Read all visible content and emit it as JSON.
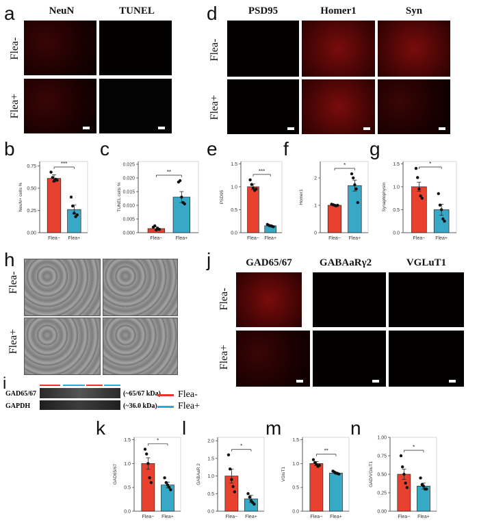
{
  "panel_labels": {
    "a": "a",
    "b": "b",
    "c": "c",
    "d": "d",
    "e": "e",
    "f": "f",
    "g": "g",
    "h": "h",
    "i": "i",
    "j": "j",
    "k": "k",
    "l": "l",
    "m": "m",
    "n": "n"
  },
  "group_labels": {
    "neg": "Flea-",
    "pos": "Flea+"
  },
  "panel_a": {
    "col1": "NeuN",
    "col2": "TUNEL"
  },
  "panel_d": {
    "col1": "PSD95",
    "col2": "Homer1",
    "col3": "Syn"
  },
  "panel_j": {
    "col1": "GAD65/67",
    "col2": "GABAaRγ2",
    "col3": "VGLuT1"
  },
  "panel_i": {
    "row1": "GAD65/67",
    "row2": "GAPDH",
    "row1_kda": "(~65/67 kDa)",
    "row2_kda": "(~36.0 kDa)",
    "legend_neg": "Flea-",
    "legend_pos": "Flea+",
    "color_neg": "#e8362a",
    "color_pos": "#2ba8d8"
  },
  "colors": {
    "neg_bar": "#e8412f",
    "pos_bar": "#37a9c6"
  },
  "chart_data": [
    {
      "id": "b",
      "type": "bar",
      "categories": [
        "Flea−",
        "Flea+"
      ],
      "values": [
        0.61,
        0.26
      ],
      "errors": [
        0.04,
        0.05
      ],
      "points": [
        [
          0.68,
          0.62,
          0.58,
          0.6,
          0.59
        ],
        [
          0.4,
          0.3,
          0.22,
          0.18,
          0.2
        ]
      ],
      "ylabel": "NeuN+ cells %",
      "yticks": [
        0,
        0.25,
        0.5,
        0.75
      ],
      "ytick_labels": [
        "0.00",
        "0.25",
        "0.50",
        "0.75"
      ],
      "ylim": [
        0,
        0.8
      ],
      "sig": "***"
    },
    {
      "id": "c",
      "type": "bar",
      "categories": [
        "Flea−",
        "Flea+"
      ],
      "values": [
        0.0015,
        0.013
      ],
      "errors": [
        0.0006,
        0.002
      ],
      "points": [
        [
          0.002,
          0.0025,
          0.001,
          0.0015,
          0.0012
        ],
        [
          0.0185,
          0.019,
          0.013,
          0.011,
          0.0105
        ]
      ],
      "ylabel": "TUNEL cells %",
      "yticks": [
        0,
        0.005,
        0.01,
        0.015,
        0.02,
        0.025
      ],
      "ytick_labels": [
        "0.000",
        "0.005",
        "0.010",
        "0.015",
        "0.020",
        "0.025"
      ],
      "ylim": [
        0,
        0.026
      ],
      "sig": "**"
    },
    {
      "id": "e",
      "type": "bar",
      "categories": [
        "Flea−",
        "Flea+"
      ],
      "values": [
        1.0,
        0.15
      ],
      "errors": [
        0.06,
        0.02
      ],
      "points": [
        [
          1.15,
          1.05,
          0.97,
          0.92,
          0.95
        ],
        [
          0.18,
          0.16,
          0.15,
          0.14,
          0.13
        ]
      ],
      "ylabel": "PSD95",
      "yticks": [
        0,
        0.5,
        1.0,
        1.5
      ],
      "ytick_labels": [
        "0.0",
        "0.5",
        "1.0",
        "1.5"
      ],
      "ylim": [
        0,
        1.55
      ],
      "sig": "***"
    },
    {
      "id": "f",
      "type": "bar",
      "categories": [
        "Flea−",
        "Flea+"
      ],
      "values": [
        1.0,
        1.72
      ],
      "errors": [
        0.03,
        0.2
      ],
      "points": [
        [
          1.04,
          1.02,
          1.0,
          0.98,
          1.0
        ],
        [
          2.15,
          2.0,
          1.75,
          1.6,
          1.1
        ]
      ],
      "ylabel": "Homer1",
      "yticks": [
        0,
        1,
        2
      ],
      "ytick_labels": [
        "0",
        "1",
        "2"
      ],
      "ylim": [
        0,
        2.6
      ],
      "sig": "*"
    },
    {
      "id": "g",
      "type": "bar",
      "categories": [
        "Flea−",
        "Flea+"
      ],
      "values": [
        1.0,
        0.5
      ],
      "errors": [
        0.1,
        0.12
      ],
      "points": [
        [
          1.4,
          1.2,
          0.95,
          0.8,
          0.75
        ],
        [
          0.85,
          0.6,
          0.5,
          0.3,
          0.25
        ]
      ],
      "ylabel": "Synaptophysin",
      "yticks": [
        0,
        0.5,
        1.0,
        1.5
      ],
      "ytick_labels": [
        "0.0",
        "0.5",
        "1.0",
        "1.5"
      ],
      "ylim": [
        0,
        1.55
      ],
      "sig": "*"
    },
    {
      "id": "k",
      "type": "bar",
      "categories": [
        "Flea−",
        "Flea+"
      ],
      "values": [
        1.0,
        0.55
      ],
      "errors": [
        0.12,
        0.06
      ],
      "points": [
        [
          1.3,
          1.2,
          1.0,
          0.7,
          0.6
        ],
        [
          0.7,
          0.6,
          0.55,
          0.5,
          0.45
        ]
      ],
      "ylabel": "GAD65/67",
      "yticks": [
        0,
        0.5,
        1.0,
        1.5
      ],
      "ytick_labels": [
        "0.0",
        "0.5",
        "1.0",
        "1.5"
      ],
      "ylim": [
        0,
        1.55
      ],
      "sig": "*"
    },
    {
      "id": "l",
      "type": "bar",
      "categories": [
        "Flea−",
        "Flea+"
      ],
      "values": [
        1.0,
        0.35
      ],
      "errors": [
        0.2,
        0.1
      ],
      "points": [
        [
          1.6,
          1.2,
          0.9,
          0.7,
          0.55
        ],
        [
          0.5,
          0.4,
          0.3,
          0.25,
          0.2
        ]
      ],
      "ylabel": "GABAaR 2",
      "yticks": [
        0,
        0.5,
        1.0,
        1.5,
        2.0
      ],
      "ytick_labels": [
        "0.0",
        "0.5",
        "1.0",
        "1.5",
        "2.0"
      ],
      "ylim": [
        0,
        2.1
      ],
      "sig": "*"
    },
    {
      "id": "m",
      "type": "bar",
      "categories": [
        "Flea−",
        "Flea+"
      ],
      "values": [
        1.0,
        0.8
      ],
      "errors": [
        0.04,
        0.02
      ],
      "points": [
        [
          1.08,
          1.02,
          0.98,
          0.94,
          0.96
        ],
        [
          0.84,
          0.82,
          0.8,
          0.79,
          0.78
        ]
      ],
      "ylabel": "VGluT1",
      "yticks": [
        0,
        0.5,
        1.0,
        1.5
      ],
      "ytick_labels": [
        "0.0",
        "0.5",
        "1.0",
        "1.5"
      ],
      "ylim": [
        0,
        1.55
      ],
      "sig": "**"
    },
    {
      "id": "n",
      "type": "bar",
      "categories": [
        "Flea−",
        "Flea+"
      ],
      "values": [
        0.5,
        0.34
      ],
      "errors": [
        0.07,
        0.04
      ],
      "points": [
        [
          0.75,
          0.6,
          0.5,
          0.38,
          0.32
        ],
        [
          0.45,
          0.36,
          0.34,
          0.3,
          0.3
        ]
      ],
      "ylabel": "GAD/VGluT1",
      "yticks": [
        0,
        0.25,
        0.5,
        0.75,
        1.0
      ],
      "ytick_labels": [
        "0.00",
        "0.25",
        "0.50",
        "0.75",
        "1.00"
      ],
      "ylim": [
        0,
        1.0
      ],
      "sig": "*"
    }
  ]
}
